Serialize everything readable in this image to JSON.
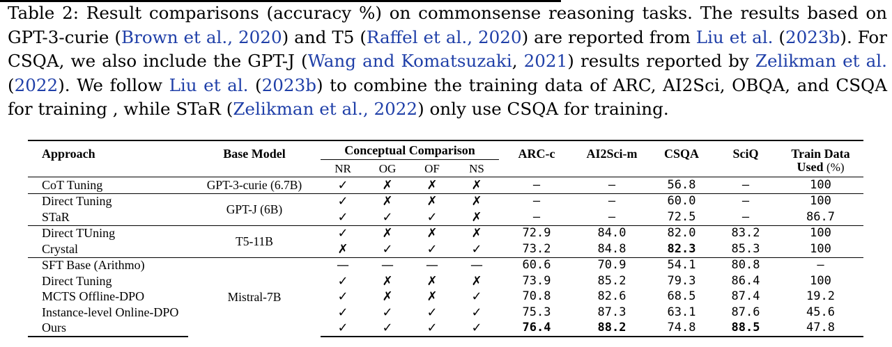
{
  "caption": {
    "segments": [
      {
        "text": "Table 2: Result comparisons (accuracy %) on commonsense reasoning tasks. The results based on GPT-3-curie (",
        "cite": false
      },
      {
        "text": "Brown et al., 2020",
        "cite": true
      },
      {
        "text": ") and T5 (",
        "cite": false
      },
      {
        "text": "Raffel et al., 2020",
        "cite": true
      },
      {
        "text": ") are reported from ",
        "cite": false
      },
      {
        "text": "Liu et al.",
        "cite": true
      },
      {
        "text": " (",
        "cite": false
      },
      {
        "text": "2023b",
        "cite": true
      },
      {
        "text": "). For CSQA, we also include the GPT-J (",
        "cite": false
      },
      {
        "text": "Wang and Komatsuzaki",
        "cite": true
      },
      {
        "text": ", ",
        "cite": false
      },
      {
        "text": "2021",
        "cite": true
      },
      {
        "text": ") results reported by ",
        "cite": false
      },
      {
        "text": "Zelikman et al.",
        "cite": true
      },
      {
        "text": " (",
        "cite": false
      },
      {
        "text": "2022",
        "cite": true
      },
      {
        "text": "). We follow ",
        "cite": false
      },
      {
        "text": "Liu et al.",
        "cite": true
      },
      {
        "text": " (",
        "cite": false
      },
      {
        "text": "2023b",
        "cite": true
      },
      {
        "text": ") to combine the training data of ARC, AI2Sci, OBQA, and CSQA for training , while STaR (",
        "cite": false
      },
      {
        "text": "Zelikman et al., 2022",
        "cite": true
      },
      {
        "text": ") only use CSQA for training.",
        "cite": false
      }
    ]
  },
  "table": {
    "headers": {
      "approach": "Approach",
      "base_model": "Base Model",
      "conceptual": "Conceptual Comparison",
      "sub": [
        "NR",
        "OG",
        "OF",
        "NS"
      ],
      "arc": "ARC-c",
      "ai2sci": "AI2Sci-m",
      "csqa": "CSQA",
      "sciq": "SciQ",
      "train_line1": "Train Data",
      "train_line2a": "Used ",
      "train_line2b": "(%)"
    },
    "base_models": {
      "g1": "GPT-3-curie (6.7B)",
      "g2": "GPT-J (6B)",
      "g3": "T5-11B",
      "g4": "Mistral-7B"
    },
    "rows": [
      {
        "approach": "CoT Tuning",
        "marks": [
          "✓",
          "✗",
          "✗",
          "✗"
        ],
        "arc": "—",
        "ai2sci": "—",
        "csqa": "56.8",
        "sciq": "—",
        "train": "100"
      },
      {
        "approach": "Direct Tuning",
        "marks": [
          "✓",
          "✗",
          "✗",
          "✗"
        ],
        "arc": "—",
        "ai2sci": "—",
        "csqa": "60.0",
        "sciq": "—",
        "train": "100"
      },
      {
        "approach": "STaR",
        "marks": [
          "✓",
          "✓",
          "✓",
          "✗"
        ],
        "arc": "—",
        "ai2sci": "—",
        "csqa": "72.5",
        "sciq": "—",
        "train": "86.7"
      },
      {
        "approach": "Direct TUning",
        "marks": [
          "✓",
          "✗",
          "✗",
          "✗"
        ],
        "arc": "72.9",
        "ai2sci": "84.0",
        "csqa": "82.0",
        "sciq": "83.2",
        "train": "100"
      },
      {
        "approach": "Crystal",
        "marks": [
          "✗",
          "✓",
          "✓",
          "✓"
        ],
        "arc": "73.2",
        "ai2sci": "84.8",
        "csqa": "82.3",
        "sciq": "85.3",
        "train": "100"
      },
      {
        "approach": "SFT Base (Arithmo)",
        "marks": [
          "—",
          "—",
          "—",
          "—"
        ],
        "arc": "60.6",
        "ai2sci": "70.9",
        "csqa": "54.1",
        "sciq": "80.8",
        "train": "—"
      },
      {
        "approach": "Direct Tuning",
        "marks": [
          "✓",
          "✗",
          "✗",
          "✗"
        ],
        "arc": "73.9",
        "ai2sci": "85.2",
        "csqa": "79.3",
        "sciq": "86.4",
        "train": "100"
      },
      {
        "approach": "MCTS Offline-DPO",
        "marks": [
          "✓",
          "✗",
          "✗",
          "✓"
        ],
        "arc": "70.8",
        "ai2sci": "82.6",
        "csqa": "68.5",
        "sciq": "87.4",
        "train": "19.2"
      },
      {
        "approach": "Instance-level Online-DPO",
        "marks": [
          "✓",
          "✓",
          "✓",
          "✓"
        ],
        "arc": "75.3",
        "ai2sci": "87.3",
        "csqa": "63.1",
        "sciq": "87.6",
        "train": "45.6"
      },
      {
        "approach": "Ours",
        "marks": [
          "✓",
          "✓",
          "✓",
          "✓"
        ],
        "arc": "76.4",
        "ai2sci": "88.2",
        "csqa": "74.8",
        "sciq": "88.5",
        "train": "47.8"
      }
    ]
  }
}
